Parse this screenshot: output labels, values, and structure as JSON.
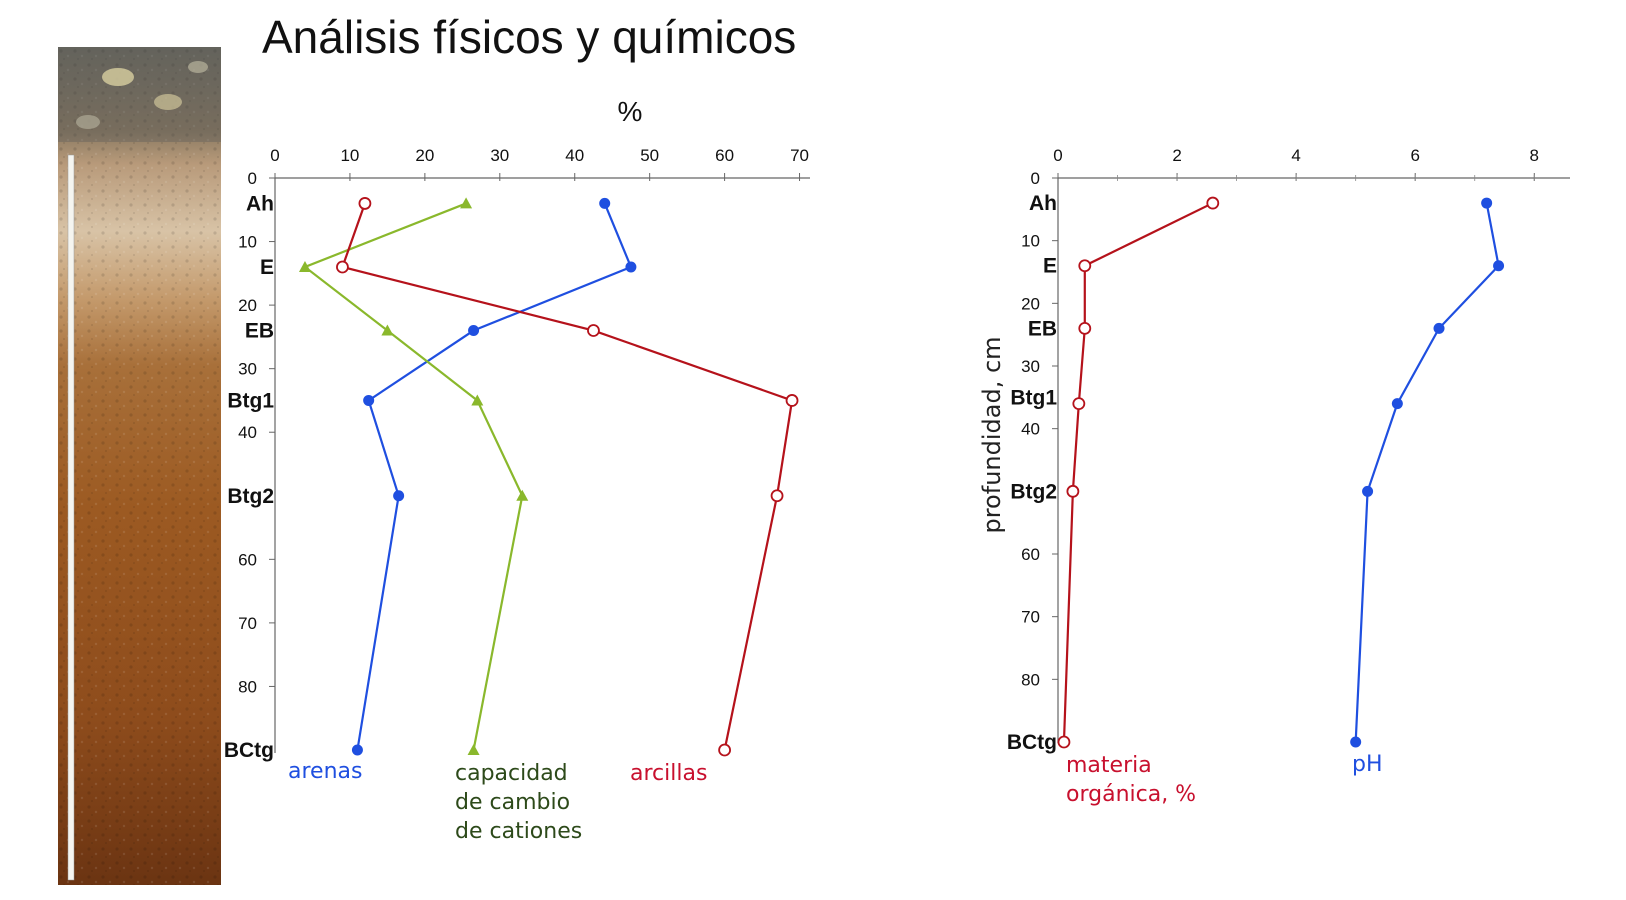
{
  "title": "Análisis físicos y químicos",
  "photo_description_icon": "soil-profile-photo",
  "chart_data": [
    {
      "type": "line",
      "axis_title_top": "%",
      "x_ticks": [
        "0",
        "10",
        "20",
        "30",
        "40",
        "50",
        "60",
        "70"
      ],
      "xlim": [
        0,
        75
      ],
      "y_ticks": [
        "0",
        "10",
        "20",
        "30",
        "40",
        "60",
        "70",
        "80"
      ],
      "ylim": [
        0,
        90
      ],
      "horizons": [
        {
          "name": "Ah",
          "depth": 4
        },
        {
          "name": "E",
          "depth": 14
        },
        {
          "name": "EB",
          "depth": 24
        },
        {
          "name": "Btg1",
          "depth": 35
        },
        {
          "name": "Btg2",
          "depth": 50
        },
        {
          "name": "BCtg",
          "depth": 90
        }
      ],
      "series": [
        {
          "name": "arenas",
          "color": "#1f4fe0",
          "marker": "filled-circle",
          "x": [
            44,
            47.5,
            26.5,
            12.5,
            16.5,
            11
          ],
          "y": [
            4,
            14,
            24,
            35,
            50,
            90
          ]
        },
        {
          "name": "capacidad de cambio de cationes",
          "color": "#8ab82c",
          "marker": "triangle",
          "x": [
            25.5,
            4,
            15,
            27,
            33,
            26.5
          ],
          "y": [
            4,
            14,
            24,
            35,
            50,
            90
          ]
        },
        {
          "name": "arcillas",
          "color": "#b5121b",
          "marker": "open-circle",
          "x": [
            12,
            9,
            42.5,
            69,
            67,
            60
          ],
          "y": [
            4,
            14,
            24,
            35,
            50,
            90
          ]
        }
      ],
      "series_labels": [
        {
          "text": "arenas",
          "color": "#1f4fe0"
        },
        {
          "lines": [
            "capacidad",
            "de cambio",
            "de cationes"
          ],
          "color": "#2d4a1a"
        },
        {
          "text": "arcillas",
          "color": "#c8102e"
        }
      ]
    },
    {
      "type": "line",
      "ylabel": "profundidad, cm",
      "x_ticks": [
        "0",
        "2",
        "4",
        "6",
        "8"
      ],
      "xlim": [
        0,
        8.6
      ],
      "y_ticks": [
        "0",
        "10",
        "20",
        "30",
        "40",
        "60",
        "70",
        "80"
      ],
      "ylim": [
        0,
        90
      ],
      "horizons": [
        {
          "name": "Ah",
          "depth": 4
        },
        {
          "name": "E",
          "depth": 14
        },
        {
          "name": "EB",
          "depth": 24
        },
        {
          "name": "Btg1",
          "depth": 35
        },
        {
          "name": "Btg2",
          "depth": 50
        },
        {
          "name": "BCtg",
          "depth": 90
        }
      ],
      "series": [
        {
          "name": "materia orgánica, %",
          "color": "#b5121b",
          "marker": "open-circle",
          "x": [
            2.6,
            0.45,
            0.45,
            0.35,
            0.25,
            0.1
          ],
          "y": [
            4,
            14,
            24,
            36,
            50,
            90
          ]
        },
        {
          "name": "pH",
          "color": "#1f4fe0",
          "marker": "filled-circle",
          "x": [
            7.2,
            7.4,
            6.4,
            5.7,
            5.2,
            5.0
          ],
          "y": [
            4,
            14,
            24,
            36,
            50,
            90
          ]
        }
      ],
      "series_labels": [
        {
          "lines": [
            "materia",
            "orgánica, %"
          ],
          "color": "#c8102e"
        },
        {
          "text": "pH",
          "color": "#1f4fe0"
        }
      ]
    }
  ]
}
